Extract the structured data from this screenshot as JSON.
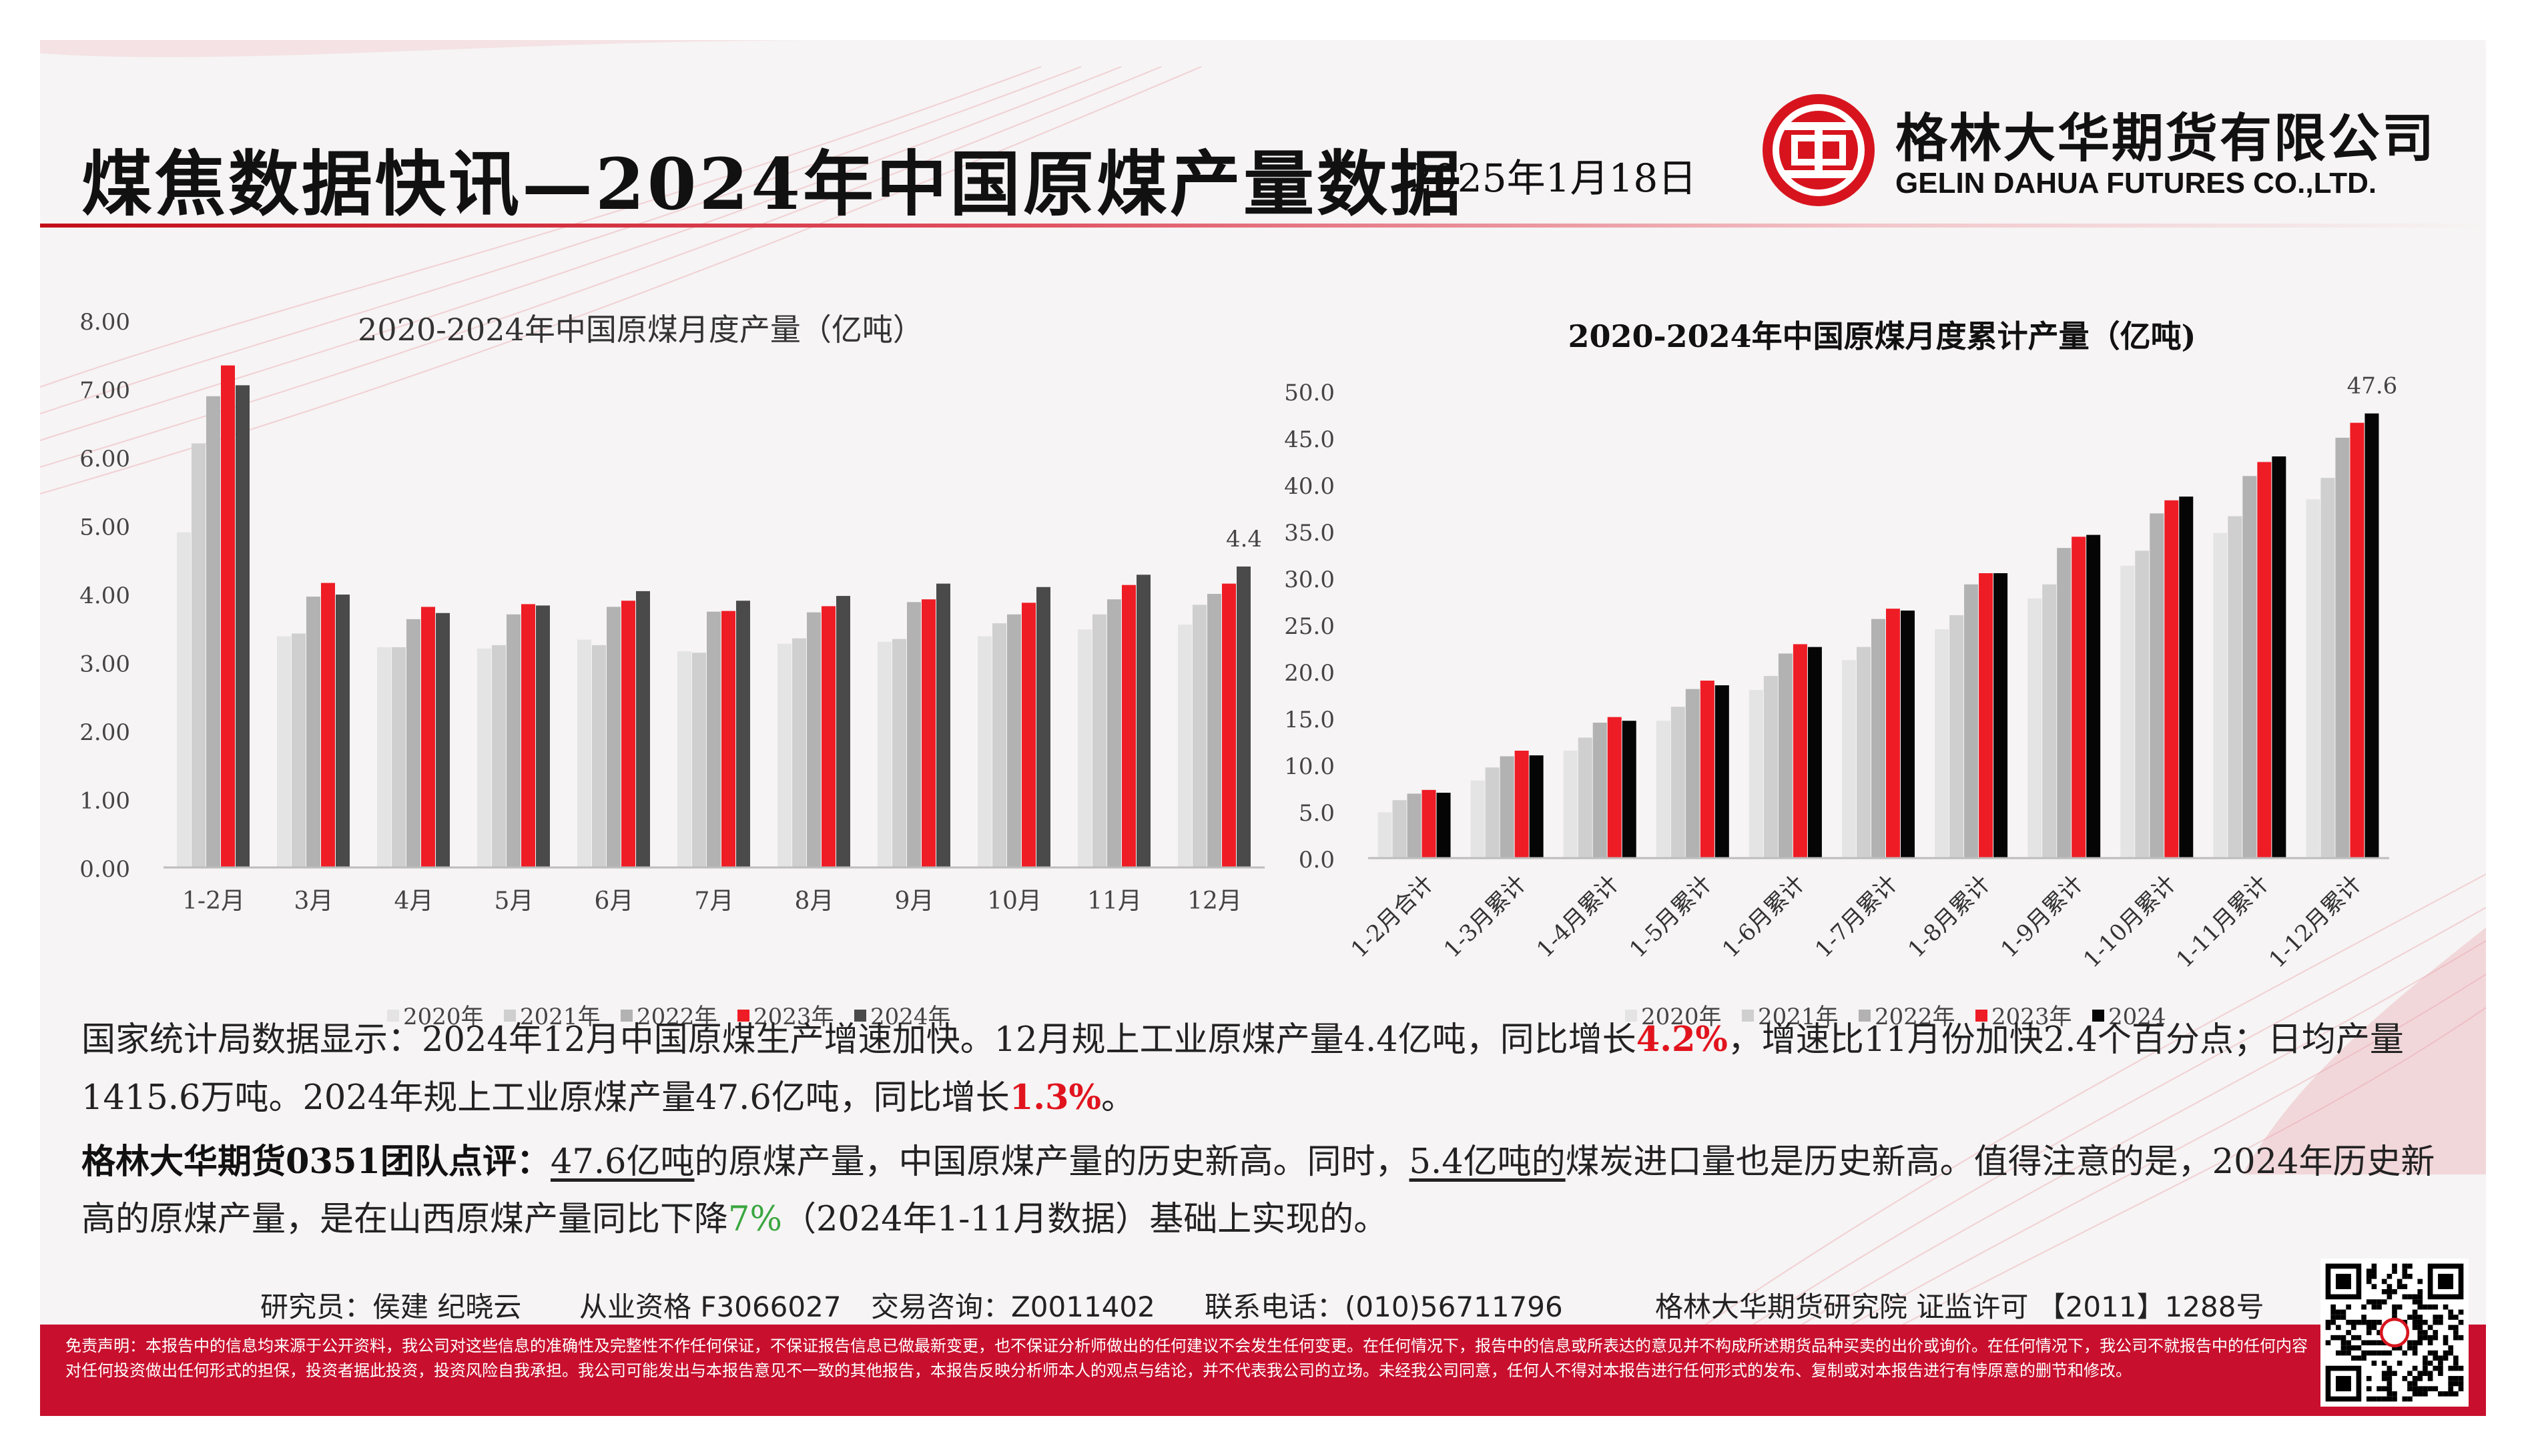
{
  "header": {
    "title": "煤焦数据快讯—2024年中国原煤产量数据",
    "date": "2025年1月18日",
    "company_cn": "格林大华期货有限公司",
    "company_en": "GELIN DAHUA FUTURES CO.,LTD."
  },
  "colors": {
    "brand_red": "#c8102e",
    "s2020": "#e4e4e4",
    "s2021": "#cfcfcf",
    "s2022": "#b2b2b2",
    "s2023": "#ee1c25",
    "s2024_monthly": "#4a4a4a",
    "s2024_cumulative": "#050505"
  },
  "chart_data": [
    {
      "type": "bar",
      "title": "2020-2024年中国原煤月度产量（亿吨）",
      "categories": [
        "1-2月",
        "3月",
        "4月",
        "5月",
        "6月",
        "7月",
        "8月",
        "9月",
        "10月",
        "11月",
        "12月"
      ],
      "series": [
        {
          "name": "2020年",
          "values": [
            4.9,
            3.38,
            3.22,
            3.2,
            3.33,
            3.16,
            3.27,
            3.3,
            3.38,
            3.48,
            3.55
          ]
        },
        {
          "name": "2021年",
          "values": [
            6.2,
            3.42,
            3.22,
            3.25,
            3.25,
            3.14,
            3.35,
            3.34,
            3.57,
            3.7,
            3.84
          ]
        },
        {
          "name": "2022年",
          "values": [
            6.89,
            3.96,
            3.63,
            3.7,
            3.81,
            3.74,
            3.73,
            3.88,
            3.7,
            3.92,
            4.0
          ]
        },
        {
          "name": "2023年",
          "values": [
            7.34,
            4.16,
            3.81,
            3.85,
            3.9,
            3.75,
            3.82,
            3.92,
            3.87,
            4.13,
            4.15
          ]
        },
        {
          "name": "2024年",
          "values": [
            7.05,
            3.99,
            3.72,
            3.83,
            4.04,
            3.9,
            3.97,
            4.15,
            4.1,
            4.28,
            4.4
          ]
        }
      ],
      "ylim": [
        0,
        8
      ],
      "yticks": [
        "0.00",
        "1.00",
        "2.00",
        "3.00",
        "4.00",
        "5.00",
        "6.00",
        "7.00",
        "8.00"
      ],
      "annotation": "4.4",
      "legend_position": "bottom"
    },
    {
      "type": "bar",
      "title": "2020-2024年中国原煤月度累计产量（亿吨)",
      "categories": [
        "1-2月合计",
        "1-3月累计",
        "1-4月累计",
        "1-5月累计",
        "1-6月累计",
        "1-7月累计",
        "1-8月累计",
        "1-9月累计",
        "1-10月累计",
        "1-11月累计",
        "1-12月累计"
      ],
      "series": [
        {
          "name": "2020年",
          "values": [
            4.9,
            8.3,
            11.5,
            14.7,
            18.0,
            21.2,
            24.5,
            27.8,
            31.3,
            34.8,
            38.4
          ]
        },
        {
          "name": "2021年",
          "values": [
            6.2,
            9.7,
            12.9,
            16.2,
            19.5,
            22.6,
            26.0,
            29.3,
            32.9,
            36.6,
            40.7
          ]
        },
        {
          "name": "2022年",
          "values": [
            6.9,
            10.9,
            14.5,
            18.1,
            21.9,
            25.6,
            29.3,
            33.2,
            36.9,
            40.9,
            45.0
          ]
        },
        {
          "name": "2023年",
          "values": [
            7.3,
            11.5,
            15.1,
            19.0,
            22.9,
            26.7,
            30.5,
            34.4,
            38.3,
            42.4,
            46.6
          ]
        },
        {
          "name": "2024",
          "values": [
            7.0,
            11.0,
            14.7,
            18.5,
            22.6,
            26.5,
            30.5,
            34.6,
            38.7,
            43.0,
            47.6
          ]
        }
      ],
      "ylim": [
        0,
        50
      ],
      "yticks": [
        "0.0",
        "5.0",
        "10.0",
        "15.0",
        "20.0",
        "25.0",
        "30.0",
        "35.0",
        "40.0",
        "45.0",
        "50.0"
      ],
      "annotation": "47.6",
      "legend_position": "bottom"
    }
  ],
  "text": {
    "p1_a": "国家统计局数据显示：2024年12月中国原煤生产增速加快。12月规上工业原煤产量4.4亿吨，同比增长",
    "p1_red1": "4.2%",
    "p1_b": "，增速比11月份加快2.4个百分点；日均产量1415.6万吨。2024年规上工业原煤产量47.6亿吨，同比增长",
    "p1_red2": "1.3%",
    "p1_c": "。",
    "p2_lead": "格林大华期货0351团队点评：",
    "p2_u1": "47.6亿吨",
    "p2_a": "的原煤产量，中国原煤产量的历史新高。同时，",
    "p2_u2": "5.4亿吨的",
    "p2_b": "煤炭进口量也是历史新高。值得注意的是，2024年历史新高的原煤产量，是在山西原煤产量同比下降",
    "p2_green": "7%",
    "p2_c": "（2024年1-11月数据）基础上实现的。"
  },
  "contact": {
    "researchers": "研究员：侯建 纪晓云",
    "license": "从业资格 F3066027",
    "consult": "交易咨询：Z0011402",
    "phone": "联系电话：(010)56711796",
    "institute": "格林大华期货研究院  证监许可 【2011】1288号"
  },
  "disclaimer": "免责声明：本报告中的信息均来源于公开资料，我公司对这些信息的准确性及完整性不作任何保证，不保证报告信息已做最新变更，也不保证分析师做出的任何建议不会发生任何变更。在任何情况下，报告中的信息或所表达的意见并不构成所述期货品种买卖的出价或询价。在任何情况下，我公司不就报告中的任何内容对任何投资做出任何形式的担保，投资者据此投资，投资风险自我承担。我公司可能发出与本报告意见不一致的其他报告，本报告反映分析师本人的观点与结论，并不代表我公司的立场。未经我公司同意，任何人不得对本报告进行任何形式的发布、复制或对本报告进行有悖原意的删节和修改。"
}
